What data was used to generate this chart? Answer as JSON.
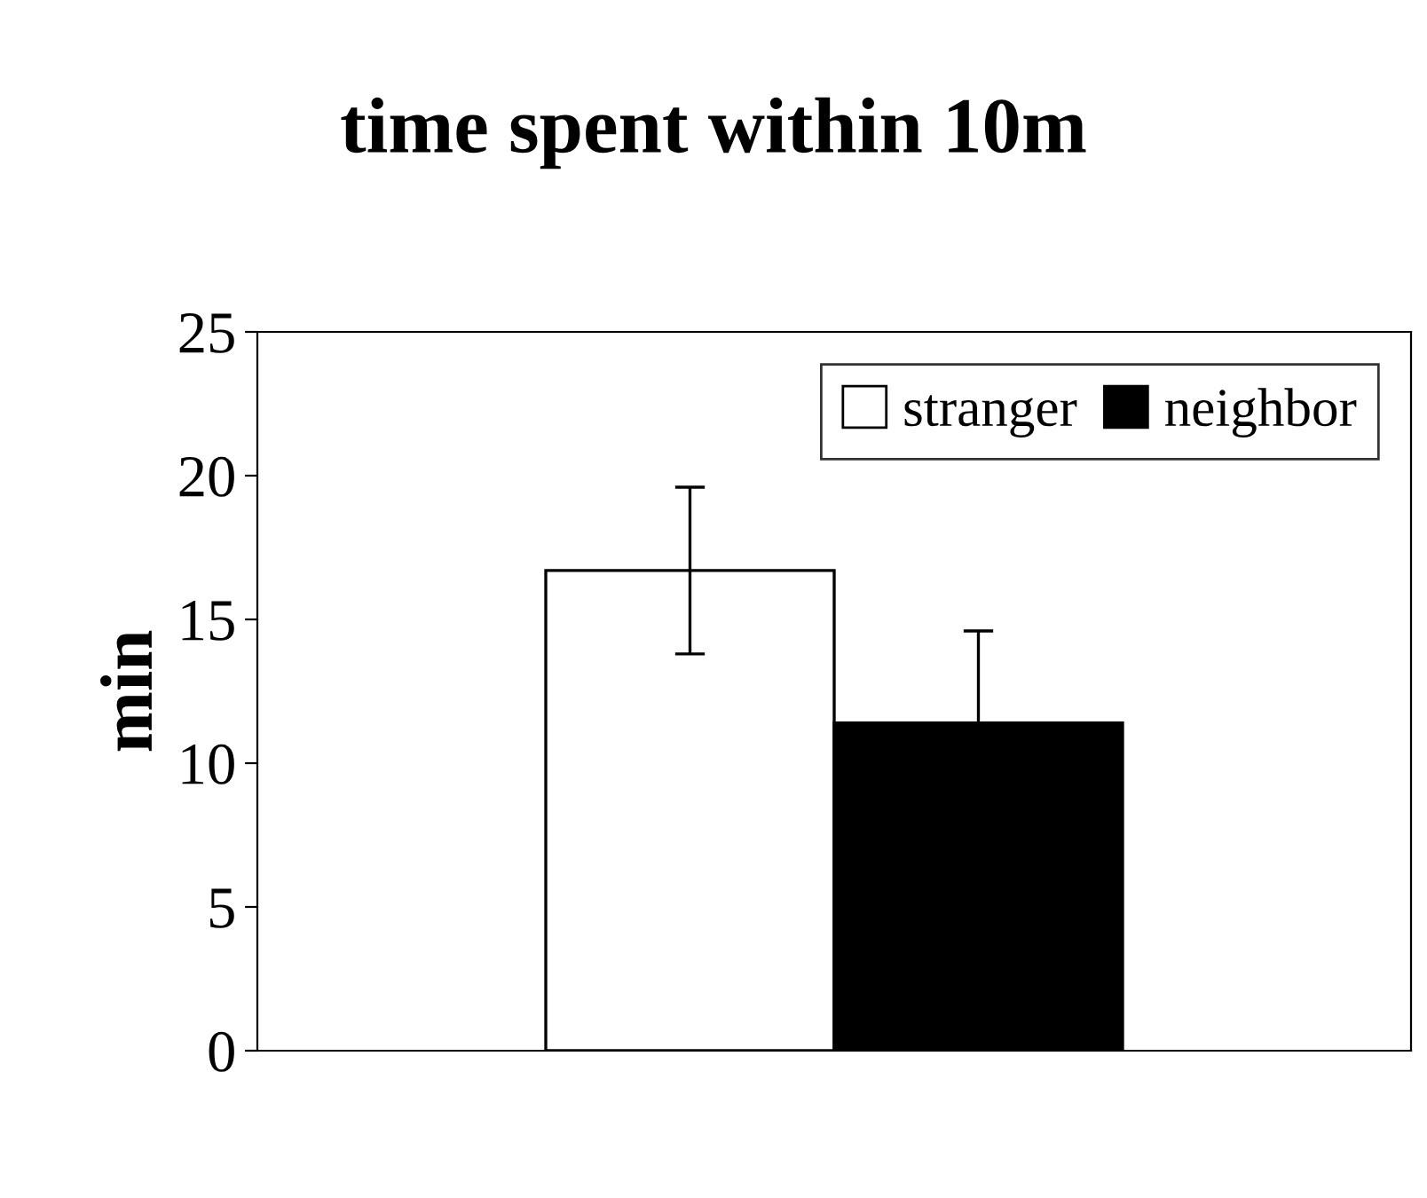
{
  "chart_data": {
    "type": "bar",
    "title": "time spent within 10m",
    "ylabel": "min",
    "categories": [
      null
    ],
    "series": [
      {
        "name": "stranger",
        "color": "#ffffff",
        "values": [
          16.7
        ],
        "errors": [
          2.9
        ]
      },
      {
        "name": "neighbor",
        "color": "#000000",
        "values": [
          11.4
        ],
        "errors": [
          3.2
        ]
      }
    ],
    "ylim": [
      0,
      25
    ],
    "yticks": [
      0,
      5,
      10,
      15,
      20,
      25
    ],
    "grid": false,
    "legend": "top right"
  }
}
